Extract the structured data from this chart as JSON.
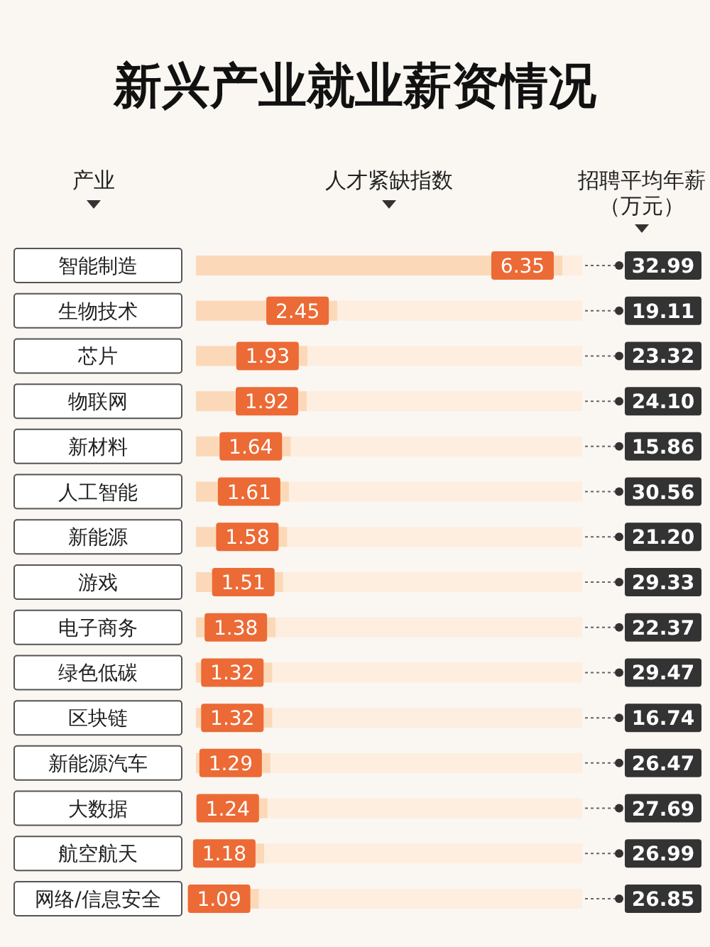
{
  "chart_data": {
    "type": "bar",
    "orientation": "horizontal",
    "title": "新兴产业就业薪资情况",
    "ylabel": "产业",
    "xlabel": "人才紧缺指数",
    "categories": [
      "智能制造",
      "生物技术",
      "芯片",
      "物联网",
      "新材料",
      "人工智能",
      "新能源",
      "游戏",
      "电子商务",
      "绿色低碳",
      "区块链",
      "新能源汽车",
      "大数据",
      "航空航天",
      "网络/信息安全"
    ],
    "values": [
      6.35,
      2.45,
      1.93,
      1.92,
      1.64,
      1.61,
      1.58,
      1.51,
      1.38,
      1.32,
      1.32,
      1.29,
      1.24,
      1.18,
      1.09
    ],
    "color": "#fbd9b8",
    "data_labels": true,
    "annotations": [
      "招聘平均年薪（万元）",
      "32.99",
      "19.11",
      "23.32",
      "24.10",
      "15.86",
      "30.56",
      "21.20",
      "29.33",
      "22.37",
      "29.47",
      "16.74",
      "26.47",
      "27.69",
      "26.99",
      "26.85"
    ]
  }
}
